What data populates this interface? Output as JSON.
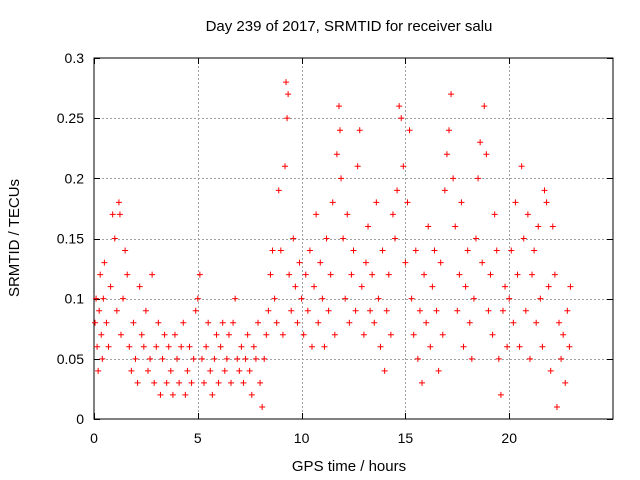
{
  "chart_data": {
    "type": "scatter",
    "title": "Day 239 of 2017, SRMTID for receiver salu",
    "xlabel": "GPS time / hours",
    "ylabel": "SRMTID / TECUs",
    "xlim": [
      0,
      25
    ],
    "ylim": [
      0,
      0.3
    ],
    "xticks": [
      0,
      5,
      10,
      15,
      20
    ],
    "xtick_labels": [
      "0",
      "5",
      "10",
      "15",
      "20"
    ],
    "yticks": [
      0,
      0.05,
      0.1,
      0.15,
      0.2,
      0.25,
      0.3
    ],
    "ytick_labels": [
      "0",
      "0.05",
      "0.1",
      "0.15",
      "0.2",
      "0.25",
      "0.3"
    ],
    "grid": true,
    "marker": "plus",
    "color": "#ff0000",
    "series": [
      {
        "name": "SRMTID",
        "points": [
          [
            0.05,
            0.08
          ],
          [
            0.1,
            0.1
          ],
          [
            0.15,
            0.06
          ],
          [
            0.2,
            0.04
          ],
          [
            0.25,
            0.09
          ],
          [
            0.3,
            0.12
          ],
          [
            0.35,
            0.07
          ],
          [
            0.4,
            0.05
          ],
          [
            0.45,
            0.1
          ],
          [
            0.5,
            0.13
          ],
          [
            0.6,
            0.08
          ],
          [
            0.7,
            0.06
          ],
          [
            0.8,
            0.11
          ],
          [
            0.9,
            0.17
          ],
          [
            1.0,
            0.15
          ],
          [
            1.1,
            0.09
          ],
          [
            1.2,
            0.18
          ],
          [
            1.25,
            0.17
          ],
          [
            1.3,
            0.07
          ],
          [
            1.4,
            0.1
          ],
          [
            1.5,
            0.14
          ],
          [
            1.6,
            0.12
          ],
          [
            1.7,
            0.06
          ],
          [
            1.8,
            0.04
          ],
          [
            1.9,
            0.08
          ],
          [
            2.0,
            0.05
          ],
          [
            2.1,
            0.03
          ],
          [
            2.2,
            0.11
          ],
          [
            2.3,
            0.07
          ],
          [
            2.4,
            0.06
          ],
          [
            2.5,
            0.09
          ],
          [
            2.6,
            0.04
          ],
          [
            2.7,
            0.05
          ],
          [
            2.8,
            0.12
          ],
          [
            2.9,
            0.03
          ],
          [
            3.0,
            0.06
          ],
          [
            3.1,
            0.08
          ],
          [
            3.2,
            0.02
          ],
          [
            3.3,
            0.05
          ],
          [
            3.4,
            0.07
          ],
          [
            3.5,
            0.03
          ],
          [
            3.6,
            0.06
          ],
          [
            3.7,
            0.04
          ],
          [
            3.8,
            0.02
          ],
          [
            3.9,
            0.07
          ],
          [
            4.0,
            0.05
          ],
          [
            4.1,
            0.03
          ],
          [
            4.2,
            0.06
          ],
          [
            4.3,
            0.08
          ],
          [
            4.4,
            0.02
          ],
          [
            4.5,
            0.04
          ],
          [
            4.6,
            0.06
          ],
          [
            4.7,
            0.03
          ],
          [
            4.8,
            0.05
          ],
          [
            4.9,
            0.09
          ],
          [
            5.0,
            0.1
          ],
          [
            5.1,
            0.12
          ],
          [
            5.2,
            0.05
          ],
          [
            5.3,
            0.03
          ],
          [
            5.4,
            0.06
          ],
          [
            5.5,
            0.08
          ],
          [
            5.6,
            0.04
          ],
          [
            5.7,
            0.02
          ],
          [
            5.8,
            0.05
          ],
          [
            5.9,
            0.07
          ],
          [
            6.0,
            0.03
          ],
          [
            6.1,
            0.06
          ],
          [
            6.2,
            0.08
          ],
          [
            6.3,
            0.04
          ],
          [
            6.4,
            0.05
          ],
          [
            6.5,
            0.07
          ],
          [
            6.6,
            0.03
          ],
          [
            6.7,
            0.08
          ],
          [
            6.8,
            0.1
          ],
          [
            6.9,
            0.05
          ],
          [
            7.0,
            0.04
          ],
          [
            7.1,
            0.06
          ],
          [
            7.2,
            0.03
          ],
          [
            7.3,
            0.05
          ],
          [
            7.4,
            0.07
          ],
          [
            7.5,
            0.04
          ],
          [
            7.6,
            0.02
          ],
          [
            7.7,
            0.06
          ],
          [
            7.8,
            0.05
          ],
          [
            7.9,
            0.08
          ],
          [
            8.0,
            0.03
          ],
          [
            8.1,
            0.01
          ],
          [
            8.2,
            0.05
          ],
          [
            8.3,
            0.07
          ],
          [
            8.4,
            0.09
          ],
          [
            8.5,
            0.12
          ],
          [
            8.6,
            0.14
          ],
          [
            8.7,
            0.1
          ],
          [
            8.8,
            0.08
          ],
          [
            8.9,
            0.19
          ],
          [
            9.0,
            0.14
          ],
          [
            9.1,
            0.07
          ],
          [
            9.2,
            0.21
          ],
          [
            9.25,
            0.28
          ],
          [
            9.3,
            0.25
          ],
          [
            9.35,
            0.27
          ],
          [
            9.4,
            0.12
          ],
          [
            9.5,
            0.09
          ],
          [
            9.6,
            0.15
          ],
          [
            9.7,
            0.11
          ],
          [
            9.8,
            0.08
          ],
          [
            9.9,
            0.13
          ],
          [
            10.0,
            0.1
          ],
          [
            10.1,
            0.07
          ],
          [
            10.2,
            0.12
          ],
          [
            10.3,
            0.09
          ],
          [
            10.4,
            0.14
          ],
          [
            10.5,
            0.06
          ],
          [
            10.6,
            0.11
          ],
          [
            10.7,
            0.17
          ],
          [
            10.8,
            0.08
          ],
          [
            10.9,
            0.13
          ],
          [
            11.0,
            0.1
          ],
          [
            11.1,
            0.06
          ],
          [
            11.2,
            0.15
          ],
          [
            11.3,
            0.09
          ],
          [
            11.4,
            0.12
          ],
          [
            11.5,
            0.18
          ],
          [
            11.6,
            0.07
          ],
          [
            11.7,
            0.22
          ],
          [
            11.8,
            0.26
          ],
          [
            11.85,
            0.24
          ],
          [
            11.9,
            0.2
          ],
          [
            12.0,
            0.15
          ],
          [
            12.1,
            0.1
          ],
          [
            12.2,
            0.17
          ],
          [
            12.3,
            0.08
          ],
          [
            12.4,
            0.12
          ],
          [
            12.5,
            0.14
          ],
          [
            12.6,
            0.09
          ],
          [
            12.7,
            0.21
          ],
          [
            12.8,
            0.24
          ],
          [
            12.9,
            0.11
          ],
          [
            13.0,
            0.07
          ],
          [
            13.1,
            0.13
          ],
          [
            13.2,
            0.16
          ],
          [
            13.3,
            0.09
          ],
          [
            13.4,
            0.12
          ],
          [
            13.5,
            0.08
          ],
          [
            13.6,
            0.18
          ],
          [
            13.7,
            0.1
          ],
          [
            13.8,
            0.06
          ],
          [
            13.9,
            0.14
          ],
          [
            14.0,
            0.04
          ],
          [
            14.1,
            0.09
          ],
          [
            14.2,
            0.12
          ],
          [
            14.3,
            0.07
          ],
          [
            14.4,
            0.17
          ],
          [
            14.5,
            0.15
          ],
          [
            14.6,
            0.19
          ],
          [
            14.7,
            0.26
          ],
          [
            14.8,
            0.25
          ],
          [
            14.9,
            0.21
          ],
          [
            15.0,
            0.13
          ],
          [
            15.1,
            0.18
          ],
          [
            15.2,
            0.24
          ],
          [
            15.3,
            0.1
          ],
          [
            15.4,
            0.07
          ],
          [
            15.5,
            0.14
          ],
          [
            15.6,
            0.05
          ],
          [
            15.7,
            0.09
          ],
          [
            15.8,
            0.03
          ],
          [
            15.9,
            0.12
          ],
          [
            16.0,
            0.08
          ],
          [
            16.1,
            0.16
          ],
          [
            16.2,
            0.06
          ],
          [
            16.3,
            0.11
          ],
          [
            16.4,
            0.14
          ],
          [
            16.5,
            0.09
          ],
          [
            16.6,
            0.04
          ],
          [
            16.7,
            0.13
          ],
          [
            16.8,
            0.07
          ],
          [
            16.9,
            0.19
          ],
          [
            17.0,
            0.22
          ],
          [
            17.1,
            0.24
          ],
          [
            17.2,
            0.27
          ],
          [
            17.3,
            0.2
          ],
          [
            17.4,
            0.16
          ],
          [
            17.5,
            0.09
          ],
          [
            17.6,
            0.12
          ],
          [
            17.7,
            0.18
          ],
          [
            17.8,
            0.06
          ],
          [
            17.9,
            0.11
          ],
          [
            18.0,
            0.14
          ],
          [
            18.1,
            0.08
          ],
          [
            18.2,
            0.05
          ],
          [
            18.3,
            0.1
          ],
          [
            18.4,
            0.15
          ],
          [
            18.5,
            0.2
          ],
          [
            18.6,
            0.23
          ],
          [
            18.7,
            0.13
          ],
          [
            18.8,
            0.26
          ],
          [
            18.9,
            0.22
          ],
          [
            19.0,
            0.09
          ],
          [
            19.1,
            0.12
          ],
          [
            19.2,
            0.07
          ],
          [
            19.3,
            0.17
          ],
          [
            19.4,
            0.14
          ],
          [
            19.5,
            0.05
          ],
          [
            19.6,
            0.02
          ],
          [
            19.7,
            0.09
          ],
          [
            19.8,
            0.11
          ],
          [
            19.9,
            0.06
          ],
          [
            20.0,
            0.1
          ],
          [
            20.1,
            0.14
          ],
          [
            20.2,
            0.08
          ],
          [
            20.3,
            0.18
          ],
          [
            20.4,
            0.12
          ],
          [
            20.5,
            0.06
          ],
          [
            20.6,
            0.21
          ],
          [
            20.7,
            0.15
          ],
          [
            20.8,
            0.09
          ],
          [
            20.9,
            0.17
          ],
          [
            21.0,
            0.05
          ],
          [
            21.1,
            0.12
          ],
          [
            21.2,
            0.14
          ],
          [
            21.3,
            0.08
          ],
          [
            21.4,
            0.16
          ],
          [
            21.5,
            0.1
          ],
          [
            21.6,
            0.06
          ],
          [
            21.7,
            0.19
          ],
          [
            21.8,
            0.18
          ],
          [
            21.9,
            0.11
          ],
          [
            22.0,
            0.04
          ],
          [
            22.1,
            0.16
          ],
          [
            22.2,
            0.12
          ],
          [
            22.3,
            0.01
          ],
          [
            22.4,
            0.08
          ],
          [
            22.5,
            0.05
          ],
          [
            22.6,
            0.07
          ],
          [
            22.7,
            0.03
          ],
          [
            22.8,
            0.09
          ],
          [
            22.9,
            0.06
          ],
          [
            22.95,
            0.11
          ]
        ]
      }
    ]
  }
}
